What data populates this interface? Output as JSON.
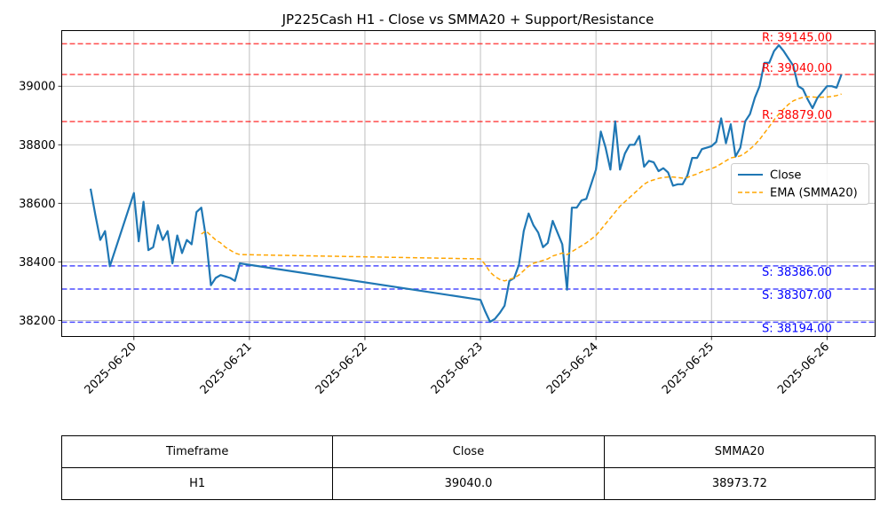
{
  "chart_data": {
    "type": "line",
    "title": "JP225Cash H1 - Close vs SMMA20 + Support/Resistance",
    "xlabel": "",
    "ylabel": "",
    "ylim": [
      38145,
      39190
    ],
    "xlim": [
      "2025-06-19 09:00",
      "2025-06-26 10:00"
    ],
    "grid": true,
    "legend_position": "center-right",
    "x_ticks": [
      "2025-06-20",
      "2025-06-21",
      "2025-06-22",
      "2025-06-23",
      "2025-06-24",
      "2025-06-25",
      "2025-06-26"
    ],
    "y_ticks": [
      38200,
      38400,
      38600,
      38800,
      39000
    ],
    "series": [
      {
        "name": "Close",
        "color": "#1f77b4",
        "style": "solid",
        "points": [
          [
            "2025-06-19 15:00",
            38650
          ],
          [
            "2025-06-19 16:00",
            38560
          ],
          [
            "2025-06-19 17:00",
            38475
          ],
          [
            "2025-06-19 18:00",
            38505
          ],
          [
            "2025-06-19 19:00",
            38385
          ],
          [
            "2025-06-20 00:00",
            38635
          ],
          [
            "2025-06-20 01:00",
            38470
          ],
          [
            "2025-06-20 02:00",
            38605
          ],
          [
            "2025-06-20 03:00",
            38440
          ],
          [
            "2025-06-20 04:00",
            38450
          ],
          [
            "2025-06-20 05:00",
            38525
          ],
          [
            "2025-06-20 06:00",
            38475
          ],
          [
            "2025-06-20 07:00",
            38505
          ],
          [
            "2025-06-20 08:00",
            38395
          ],
          [
            "2025-06-20 09:00",
            38490
          ],
          [
            "2025-06-20 10:00",
            38430
          ],
          [
            "2025-06-20 11:00",
            38475
          ],
          [
            "2025-06-20 12:00",
            38460
          ],
          [
            "2025-06-20 13:00",
            38570
          ],
          [
            "2025-06-20 14:00",
            38585
          ],
          [
            "2025-06-20 15:00",
            38480
          ],
          [
            "2025-06-20 16:00",
            38320
          ],
          [
            "2025-06-20 17:00",
            38345
          ],
          [
            "2025-06-20 18:00",
            38355
          ],
          [
            "2025-06-20 19:00",
            38350
          ],
          [
            "2025-06-20 20:00",
            38345
          ],
          [
            "2025-06-20 21:00",
            38335
          ],
          [
            "2025-06-20 22:00",
            38395
          ],
          [
            "2025-06-23 00:00",
            38270
          ],
          [
            "2025-06-23 01:00",
            38230
          ],
          [
            "2025-06-23 02:00",
            38195
          ],
          [
            "2025-06-23 03:00",
            38205
          ],
          [
            "2025-06-23 04:00",
            38225
          ],
          [
            "2025-06-23 05:00",
            38250
          ],
          [
            "2025-06-23 06:00",
            38335
          ],
          [
            "2025-06-23 07:00",
            38345
          ],
          [
            "2025-06-23 08:00",
            38390
          ],
          [
            "2025-06-23 09:00",
            38505
          ],
          [
            "2025-06-23 10:00",
            38565
          ],
          [
            "2025-06-23 11:00",
            38525
          ],
          [
            "2025-06-23 12:00",
            38500
          ],
          [
            "2025-06-23 13:00",
            38450
          ],
          [
            "2025-06-23 14:00",
            38465
          ],
          [
            "2025-06-23 15:00",
            38540
          ],
          [
            "2025-06-23 16:00",
            38500
          ],
          [
            "2025-06-23 17:00",
            38460
          ],
          [
            "2025-06-23 18:00",
            38305
          ],
          [
            "2025-06-23 19:00",
            38585
          ],
          [
            "2025-06-23 20:00",
            38585
          ],
          [
            "2025-06-23 21:00",
            38610
          ],
          [
            "2025-06-23 22:00",
            38615
          ],
          [
            "2025-06-24 00:00",
            38715
          ],
          [
            "2025-06-24 01:00",
            38845
          ],
          [
            "2025-06-24 02:00",
            38790
          ],
          [
            "2025-06-24 03:00",
            38715
          ],
          [
            "2025-06-24 04:00",
            38880
          ],
          [
            "2025-06-24 05:00",
            38715
          ],
          [
            "2025-06-24 06:00",
            38770
          ],
          [
            "2025-06-24 07:00",
            38800
          ],
          [
            "2025-06-24 08:00",
            38800
          ],
          [
            "2025-06-24 09:00",
            38830
          ],
          [
            "2025-06-24 10:00",
            38725
          ],
          [
            "2025-06-24 11:00",
            38745
          ],
          [
            "2025-06-24 12:00",
            38740
          ],
          [
            "2025-06-24 13:00",
            38710
          ],
          [
            "2025-06-24 14:00",
            38720
          ],
          [
            "2025-06-24 15:00",
            38705
          ],
          [
            "2025-06-24 16:00",
            38660
          ],
          [
            "2025-06-24 17:00",
            38665
          ],
          [
            "2025-06-24 18:00",
            38665
          ],
          [
            "2025-06-24 19:00",
            38695
          ],
          [
            "2025-06-24 20:00",
            38755
          ],
          [
            "2025-06-24 21:00",
            38755
          ],
          [
            "2025-06-24 22:00",
            38785
          ],
          [
            "2025-06-25 00:00",
            38795
          ],
          [
            "2025-06-25 01:00",
            38810
          ],
          [
            "2025-06-25 02:00",
            38890
          ],
          [
            "2025-06-25 03:00",
            38805
          ],
          [
            "2025-06-25 04:00",
            38870
          ],
          [
            "2025-06-25 05:00",
            38760
          ],
          [
            "2025-06-25 06:00",
            38790
          ],
          [
            "2025-06-25 07:00",
            38880
          ],
          [
            "2025-06-25 08:00",
            38905
          ],
          [
            "2025-06-25 09:00",
            38960
          ],
          [
            "2025-06-25 10:00",
            39000
          ],
          [
            "2025-06-25 11:00",
            39080
          ],
          [
            "2025-06-25 12:00",
            39080
          ],
          [
            "2025-06-25 13:00",
            39120
          ],
          [
            "2025-06-25 14:00",
            39140
          ],
          [
            "2025-06-25 15:00",
            39120
          ],
          [
            "2025-06-25 16:00",
            39095
          ],
          [
            "2025-06-25 17:00",
            39070
          ],
          [
            "2025-06-25 18:00",
            39000
          ],
          [
            "2025-06-25 19:00",
            38990
          ],
          [
            "2025-06-25 20:00",
            38955
          ],
          [
            "2025-06-25 21:00",
            38925
          ],
          [
            "2025-06-25 22:00",
            38960
          ],
          [
            "2025-06-26 00:00",
            39000
          ],
          [
            "2025-06-26 01:00",
            39000
          ],
          [
            "2025-06-26 02:00",
            38995
          ],
          [
            "2025-06-26 03:00",
            39040
          ]
        ]
      },
      {
        "name": "EMA (SMMA20)",
        "color": "#ffa500",
        "style": "dashed",
        "points": [
          [
            "2025-06-20 14:00",
            38495
          ],
          [
            "2025-06-20 15:00",
            38505
          ],
          [
            "2025-06-20 16:00",
            38490
          ],
          [
            "2025-06-20 17:00",
            38475
          ],
          [
            "2025-06-20 18:00",
            38465
          ],
          [
            "2025-06-20 19:00",
            38450
          ],
          [
            "2025-06-20 20:00",
            38440
          ],
          [
            "2025-06-20 21:00",
            38430
          ],
          [
            "2025-06-20 22:00",
            38425
          ],
          [
            "2025-06-23 00:00",
            38410
          ],
          [
            "2025-06-23 01:00",
            38390
          ],
          [
            "2025-06-23 02:00",
            38365
          ],
          [
            "2025-06-23 03:00",
            38350
          ],
          [
            "2025-06-23 04:00",
            38340
          ],
          [
            "2025-06-23 05:00",
            38335
          ],
          [
            "2025-06-23 06:00",
            38340
          ],
          [
            "2025-06-23 07:00",
            38345
          ],
          [
            "2025-06-23 08:00",
            38355
          ],
          [
            "2025-06-23 09:00",
            38370
          ],
          [
            "2025-06-23 10:00",
            38385
          ],
          [
            "2025-06-23 11:00",
            38395
          ],
          [
            "2025-06-23 12:00",
            38400
          ],
          [
            "2025-06-23 13:00",
            38405
          ],
          [
            "2025-06-23 14:00",
            38410
          ],
          [
            "2025-06-23 15:00",
            38420
          ],
          [
            "2025-06-23 16:00",
            38425
          ],
          [
            "2025-06-23 17:00",
            38430
          ],
          [
            "2025-06-23 18:00",
            38425
          ],
          [
            "2025-06-23 19:00",
            38435
          ],
          [
            "2025-06-23 20:00",
            38445
          ],
          [
            "2025-06-23 21:00",
            38455
          ],
          [
            "2025-06-23 22:00",
            38465
          ],
          [
            "2025-06-24 00:00",
            38490
          ],
          [
            "2025-06-24 01:00",
            38510
          ],
          [
            "2025-06-24 02:00",
            38530
          ],
          [
            "2025-06-24 03:00",
            38550
          ],
          [
            "2025-06-24 04:00",
            38570
          ],
          [
            "2025-06-24 05:00",
            38590
          ],
          [
            "2025-06-24 06:00",
            38605
          ],
          [
            "2025-06-24 07:00",
            38620
          ],
          [
            "2025-06-24 08:00",
            38635
          ],
          [
            "2025-06-24 09:00",
            38650
          ],
          [
            "2025-06-24 10:00",
            38665
          ],
          [
            "2025-06-24 11:00",
            38675
          ],
          [
            "2025-06-24 12:00",
            38680
          ],
          [
            "2025-06-24 13:00",
            38685
          ],
          [
            "2025-06-24 14:00",
            38688
          ],
          [
            "2025-06-24 15:00",
            38690
          ],
          [
            "2025-06-24 16:00",
            38690
          ],
          [
            "2025-06-24 17:00",
            38688
          ],
          [
            "2025-06-24 18:00",
            38686
          ],
          [
            "2025-06-24 19:00",
            38688
          ],
          [
            "2025-06-24 20:00",
            38695
          ],
          [
            "2025-06-24 21:00",
            38700
          ],
          [
            "2025-06-24 22:00",
            38708
          ],
          [
            "2025-06-25 00:00",
            38718
          ],
          [
            "2025-06-25 01:00",
            38725
          ],
          [
            "2025-06-25 02:00",
            38735
          ],
          [
            "2025-06-25 03:00",
            38745
          ],
          [
            "2025-06-25 04:00",
            38755
          ],
          [
            "2025-06-25 05:00",
            38758
          ],
          [
            "2025-06-25 06:00",
            38762
          ],
          [
            "2025-06-25 07:00",
            38772
          ],
          [
            "2025-06-25 08:00",
            38785
          ],
          [
            "2025-06-25 09:00",
            38800
          ],
          [
            "2025-06-25 10:00",
            38818
          ],
          [
            "2025-06-25 11:00",
            38840
          ],
          [
            "2025-06-25 12:00",
            38862
          ],
          [
            "2025-06-25 13:00",
            38885
          ],
          [
            "2025-06-25 14:00",
            38905
          ],
          [
            "2025-06-25 15:00",
            38922
          ],
          [
            "2025-06-25 16:00",
            38938
          ],
          [
            "2025-06-25 17:00",
            38950
          ],
          [
            "2025-06-25 18:00",
            38957
          ],
          [
            "2025-06-25 19:00",
            38962
          ],
          [
            "2025-06-25 20:00",
            38964
          ],
          [
            "2025-06-25 21:00",
            38963
          ],
          [
            "2025-06-25 22:00",
            38962
          ],
          [
            "2025-06-26 00:00",
            38963
          ],
          [
            "2025-06-26 01:00",
            38965
          ],
          [
            "2025-06-26 02:00",
            38968
          ],
          [
            "2025-06-26 03:00",
            38973
          ]
        ]
      }
    ],
    "resistance_levels": [
      39145.0,
      39040.0,
      38879.0
    ],
    "support_levels": [
      38386.0,
      38307.0,
      38194.0
    ],
    "resistance_labels": [
      "R: 39145.00",
      "R: 39040.00",
      "R: 38879.00"
    ],
    "support_labels": [
      "S: 38386.00",
      "S: 38307.00",
      "S: 38194.00"
    ],
    "resistance_color": "#ff0000",
    "support_color": "#0000ff"
  },
  "table": {
    "headers": [
      "Timeframe",
      "Close",
      "SMMA20"
    ],
    "row": [
      "H1",
      "39040.0",
      "38973.72"
    ]
  }
}
